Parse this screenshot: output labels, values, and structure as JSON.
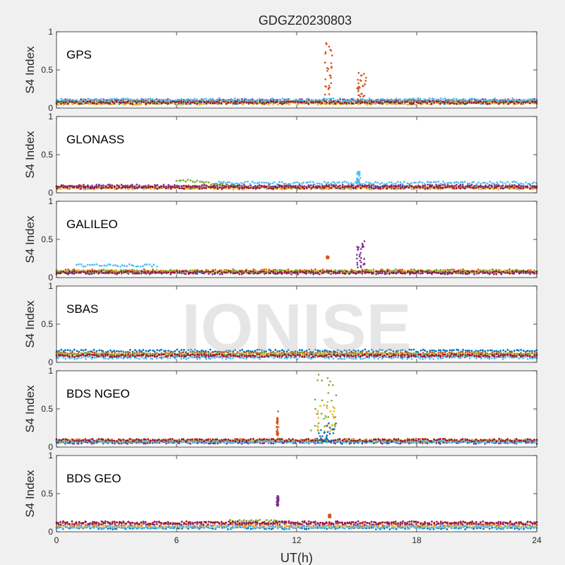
{
  "figure": {
    "title": "GDGZ20230803",
    "watermark": "IONISE",
    "xlabel": "UT(h)",
    "background": "#f0f0f0",
    "axes_background": "#ffffff",
    "series_colors": [
      "#0072BD",
      "#D95319",
      "#EDB120",
      "#7E2F8E",
      "#77AC30",
      "#4DBEEE",
      "#A2142F"
    ]
  },
  "chart_data": [
    {
      "type": "scatter",
      "panel_label": "GPS",
      "ylabel": "S4 Index",
      "xlim": [
        0,
        24
      ],
      "ylim": [
        0,
        1
      ],
      "xticks": [
        0,
        6,
        12,
        18,
        24
      ],
      "yticks": [
        0,
        0.5,
        1
      ],
      "ytick_labels": [
        "0",
        "0.5",
        "1"
      ],
      "baseline": [
        {
          "x": [
            0,
            24
          ],
          "y": [
            0.07,
            0.07
          ]
        },
        {
          "x": [
            0,
            24
          ],
          "y": [
            0.09,
            0.09
          ]
        },
        {
          "x": [
            0,
            24
          ],
          "y": [
            0.06,
            0.06
          ]
        },
        {
          "x": [
            0,
            24
          ],
          "y": [
            0.1,
            0.1
          ]
        },
        {
          "x": [
            0,
            24
          ],
          "y": [
            0.08,
            0.08
          ]
        },
        {
          "x": [
            0,
            24
          ],
          "y": [
            0.11,
            0.11
          ]
        },
        {
          "x": [
            0,
            24
          ],
          "y": [
            0.07,
            0.07
          ]
        }
      ],
      "bursts": [
        {
          "series": 1,
          "x": [
            13.4,
            13.8
          ],
          "y": [
            0.15,
            0.86
          ]
        },
        {
          "series": 1,
          "x": [
            15.0,
            15.5
          ],
          "y": [
            0.15,
            0.47
          ]
        }
      ]
    },
    {
      "type": "scatter",
      "panel_label": "GLONASS",
      "ylabel": "S4 Index",
      "xlim": [
        0,
        24
      ],
      "ylim": [
        0,
        1
      ],
      "xticks": [
        0,
        6,
        12,
        18,
        24
      ],
      "yticks": [
        0,
        0.5,
        1
      ],
      "ytick_labels": [
        "0",
        "0.5",
        "1"
      ],
      "baseline": [
        {
          "x": [
            0,
            24
          ],
          "y": [
            0.07,
            0.07
          ]
        },
        {
          "x": [
            0,
            24
          ],
          "y": [
            0.08,
            0.08
          ]
        },
        {
          "x": [
            0,
            24
          ],
          "y": [
            0.06,
            0.06
          ]
        },
        {
          "x": [
            0,
            24
          ],
          "y": [
            0.09,
            0.09
          ]
        },
        {
          "x": [
            6,
            9
          ],
          "y": [
            0.17,
            0.09
          ]
        },
        {
          "x": [
            8,
            24
          ],
          "y": [
            0.13,
            0.13
          ]
        },
        {
          "x": [
            0,
            24
          ],
          "y": [
            0.07,
            0.07
          ]
        }
      ],
      "bursts": [
        {
          "series": 5,
          "x": [
            15.0,
            15.2
          ],
          "y": [
            0.12,
            0.29
          ]
        }
      ]
    },
    {
      "type": "scatter",
      "panel_label": "GALILEO",
      "ylabel": "S4 Index",
      "xlim": [
        0,
        24
      ],
      "ylim": [
        0,
        1
      ],
      "xticks": [
        0,
        6,
        12,
        18,
        24
      ],
      "yticks": [
        0,
        0.5,
        1
      ],
      "ytick_labels": [
        "0",
        "0.5",
        "1"
      ],
      "baseline": [
        {
          "x": [
            0,
            24
          ],
          "y": [
            0.07,
            0.07
          ]
        },
        {
          "x": [
            0,
            24
          ],
          "y": [
            0.09,
            0.09
          ]
        },
        {
          "x": [
            0,
            24
          ],
          "y": [
            0.08,
            0.08
          ]
        },
        {
          "x": [
            0,
            24
          ],
          "y": [
            0.06,
            0.06
          ]
        },
        {
          "x": [
            0,
            24
          ],
          "y": [
            0.08,
            0.08
          ]
        },
        {
          "x": [
            1,
            5
          ],
          "y": [
            0.16,
            0.16
          ]
        },
        {
          "x": [
            0,
            24
          ],
          "y": [
            0.07,
            0.07
          ]
        }
      ],
      "bursts": [
        {
          "series": 3,
          "x": [
            15.0,
            15.4
          ],
          "y": [
            0.12,
            0.5
          ]
        },
        {
          "series": 1,
          "x": [
            13.5,
            13.6
          ],
          "y": [
            0.25,
            0.28
          ]
        }
      ]
    },
    {
      "type": "scatter",
      "panel_label": "SBAS",
      "ylabel": "S4 Index",
      "xlim": [
        0,
        24
      ],
      "ylim": [
        0,
        1
      ],
      "xticks": [
        0,
        6,
        12,
        18,
        24
      ],
      "yticks": [
        0,
        0.5,
        1
      ],
      "ytick_labels": [
        "0",
        "0.5",
        "1"
      ],
      "baseline": [
        {
          "x": [
            0,
            24
          ],
          "y": [
            0.15,
            0.15
          ]
        },
        {
          "x": [
            0,
            24
          ],
          "y": [
            0.12,
            0.12
          ]
        },
        {
          "x": [
            0,
            24
          ],
          "y": [
            0.1,
            0.1
          ]
        },
        {
          "x": [
            0,
            24
          ],
          "y": [
            0.08,
            0.08
          ]
        },
        {
          "x": [
            0,
            24
          ],
          "y": [
            0.11,
            0.11
          ]
        },
        {
          "x": [
            0,
            24
          ],
          "y": [
            0.06,
            0.06
          ]
        },
        {
          "x": [
            0,
            24
          ],
          "y": [
            0.09,
            0.09
          ]
        }
      ],
      "bursts": []
    },
    {
      "type": "scatter",
      "panel_label": "BDS NGEO",
      "ylabel": "S4 Index",
      "xlim": [
        0,
        24
      ],
      "ylim": [
        0,
        1
      ],
      "xticks": [
        0,
        6,
        12,
        18,
        24
      ],
      "yticks": [
        0,
        0.5,
        1
      ],
      "ytick_labels": [
        "0",
        "0.5",
        "1"
      ],
      "baseline": [
        {
          "x": [
            0,
            24
          ],
          "y": [
            0.07,
            0.07
          ]
        },
        {
          "x": [
            0,
            24
          ],
          "y": [
            0.09,
            0.09
          ]
        },
        {
          "x": [
            0,
            24
          ],
          "y": [
            0.08,
            0.08
          ]
        },
        {
          "x": [
            0,
            24
          ],
          "y": [
            0.06,
            0.06
          ]
        },
        {
          "x": [
            0,
            24
          ],
          "y": [
            0.08,
            0.08
          ]
        },
        {
          "x": [
            0,
            24
          ],
          "y": [
            0.07,
            0.07
          ]
        },
        {
          "x": [
            0,
            24
          ],
          "y": [
            0.09,
            0.09
          ]
        }
      ],
      "bursts": [
        {
          "series": 4,
          "x": [
            12.7,
            14.0
          ],
          "y": [
            0.2,
            0.95
          ]
        },
        {
          "series": 2,
          "x": [
            13.0,
            14.0
          ],
          "y": [
            0.2,
            0.6
          ]
        },
        {
          "series": 0,
          "x": [
            13.0,
            14.0
          ],
          "y": [
            0.08,
            0.32
          ]
        },
        {
          "series": 1,
          "x": [
            11.0,
            11.1
          ],
          "y": [
            0.1,
            0.47
          ]
        }
      ]
    },
    {
      "type": "scatter",
      "panel_label": "BDS GEO",
      "ylabel": "S4 Index",
      "xlim": [
        0,
        24
      ],
      "ylim": [
        0,
        1
      ],
      "xticks": [
        0,
        6,
        12,
        18,
        24
      ],
      "xtick_labels": [
        "0",
        "6",
        "12",
        "18",
        "24"
      ],
      "yticks": [
        0,
        0.5,
        1
      ],
      "ytick_labels": [
        "0",
        "0.5",
        "1"
      ],
      "baseline": [
        {
          "x": [
            0,
            24
          ],
          "y": [
            0.05,
            0.05
          ]
        },
        {
          "x": [
            0,
            24
          ],
          "y": [
            0.09,
            0.09
          ]
        },
        {
          "x": [
            0,
            24
          ],
          "y": [
            0.07,
            0.07
          ]
        },
        {
          "x": [
            0,
            24
          ],
          "y": [
            0.11,
            0.11
          ]
        },
        {
          "x": [
            8.7,
            11.2
          ],
          "y": [
            0.14,
            0.14
          ]
        },
        {
          "x": [
            0,
            24
          ],
          "y": [
            0.06,
            0.06
          ]
        },
        {
          "x": [
            0,
            24
          ],
          "y": [
            0.12,
            0.12
          ]
        }
      ],
      "bursts": [
        {
          "series": 3,
          "x": [
            11.0,
            11.1
          ],
          "y": [
            0.34,
            0.48
          ]
        },
        {
          "series": 1,
          "x": [
            13.6,
            13.7
          ],
          "y": [
            0.19,
            0.23
          ]
        }
      ]
    }
  ]
}
